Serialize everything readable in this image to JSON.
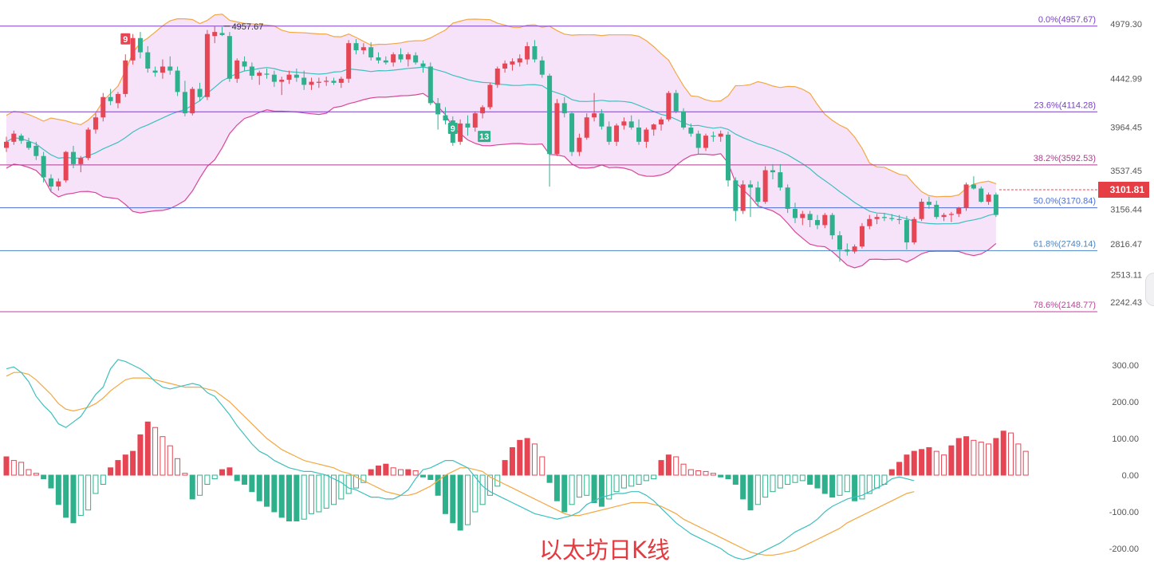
{
  "caption": "以太坊日K线",
  "chart_data": [
    {
      "type": "candlestick",
      "title": "",
      "price_axis": {
        "ticks": [
          4979.3,
          4442.99,
          3964.45,
          3537.45,
          3156.44,
          2816.47,
          2513.11,
          2242.43
        ],
        "tick_labels": [
          "4979.30",
          "4442.99",
          "3964.45",
          "3537.45",
          "3156.44",
          "2816.47",
          "2513.11",
          "2242.43"
        ]
      },
      "fibonacci_levels": [
        {
          "label": "0.0%(4957.67)",
          "value": 4957.67,
          "color": "#7b3fc9"
        },
        {
          "label": "23.6%(4114.28)",
          "value": 4114.28,
          "color": "#7b3fc9"
        },
        {
          "label": "38.2%(3592.53)",
          "value": 3592.53,
          "color": "#b03a8f"
        },
        {
          "label": "50.0%(3170.84)",
          "value": 3170.84,
          "color": "#4a6fd8"
        },
        {
          "label": "61.8%(2749.14)",
          "value": 2749.14,
          "color": "#4a86c8"
        },
        {
          "label": "78.6%(2148.77)",
          "value": 2148.77,
          "color": "#c0409a"
        }
      ],
      "high_marker": "4957.67",
      "last_price": "3101.81",
      "td_markers": [
        "9",
        "9",
        "13"
      ],
      "candles": [
        [
          3760,
          3870,
          3720,
          3820
        ],
        [
          3820,
          3930,
          3790,
          3900
        ],
        [
          3880,
          3900,
          3800,
          3830
        ],
        [
          3820,
          3860,
          3740,
          3760
        ],
        [
          3780,
          3820,
          3640,
          3680
        ],
        [
          3680,
          3720,
          3420,
          3470
        ],
        [
          3460,
          3500,
          3330,
          3380
        ],
        [
          3380,
          3460,
          3340,
          3430
        ],
        [
          3440,
          3730,
          3420,
          3720
        ],
        [
          3720,
          3780,
          3560,
          3600
        ],
        [
          3600,
          3680,
          3520,
          3660
        ],
        [
          3660,
          3960,
          3640,
          3940
        ],
        [
          3940,
          4100,
          3900,
          4060
        ],
        [
          4060,
          4300,
          4020,
          4260
        ],
        [
          4260,
          4340,
          4180,
          4220
        ],
        [
          4200,
          4310,
          4150,
          4290
        ],
        [
          4290,
          4680,
          4260,
          4620
        ],
        [
          4620,
          4880,
          4580,
          4840
        ],
        [
          4840,
          4900,
          4640,
          4700
        ],
        [
          4700,
          4760,
          4500,
          4540
        ],
        [
          4520,
          4560,
          4460,
          4500
        ],
        [
          4500,
          4630,
          4440,
          4560
        ],
        [
          4560,
          4660,
          4480,
          4520
        ],
        [
          4520,
          4560,
          4270,
          4310
        ],
        [
          4310,
          4420,
          4070,
          4100
        ],
        [
          4100,
          4360,
          4080,
          4340
        ],
        [
          4340,
          4400,
          4220,
          4260
        ],
        [
          4260,
          4920,
          4230,
          4880
        ],
        [
          4860,
          4960,
          4790,
          4900
        ],
        [
          4890,
          4950,
          4860,
          4870
        ],
        [
          4860,
          4900,
          4410,
          4440
        ],
        [
          4440,
          4640,
          4400,
          4620
        ],
        [
          4610,
          4660,
          4520,
          4560
        ],
        [
          4560,
          4600,
          4430,
          4470
        ],
        [
          4470,
          4520,
          4380,
          4500
        ],
        [
          4490,
          4540,
          4440,
          4480
        ],
        [
          4480,
          4520,
          4360,
          4410
        ],
        [
          4410,
          4460,
          4280,
          4430
        ],
        [
          4430,
          4520,
          4390,
          4480
        ],
        [
          4480,
          4540,
          4410,
          4450
        ],
        [
          4450,
          4520,
          4330,
          4380
        ],
        [
          4380,
          4450,
          4330,
          4410
        ],
        [
          4400,
          4450,
          4350,
          4410
        ],
        [
          4410,
          4460,
          4370,
          4420
        ],
        [
          4420,
          4450,
          4380,
          4400
        ],
        [
          4400,
          4460,
          4350,
          4440
        ],
        [
          4440,
          4820,
          4400,
          4790
        ],
        [
          4790,
          4830,
          4680,
          4720
        ],
        [
          4720,
          4790,
          4680,
          4750
        ],
        [
          4750,
          4800,
          4620,
          4650
        ],
        [
          4650,
          4700,
          4590,
          4620
        ],
        [
          4620,
          4660,
          4580,
          4600
        ],
        [
          4600,
          4700,
          4560,
          4680
        ],
        [
          4680,
          4740,
          4600,
          4630
        ],
        [
          4630,
          4700,
          4560,
          4680
        ],
        [
          4670,
          4700,
          4580,
          4600
        ],
        [
          4590,
          4620,
          4500,
          4560
        ],
        [
          4560,
          4600,
          4180,
          4200
        ],
        [
          4200,
          4250,
          3940,
          4090
        ],
        [
          4080,
          4160,
          3990,
          4030
        ],
        [
          4030,
          4070,
          3780,
          3810
        ],
        [
          3820,
          4040,
          3790,
          4000
        ],
        [
          4000,
          4080,
          3880,
          3960
        ],
        [
          3960,
          4120,
          3920,
          4100
        ],
        [
          4100,
          4180,
          4050,
          4160
        ],
        [
          4160,
          4400,
          4140,
          4380
        ],
        [
          4380,
          4560,
          4350,
          4540
        ],
        [
          4540,
          4620,
          4500,
          4590
        ],
        [
          4580,
          4640,
          4520,
          4610
        ],
        [
          4600,
          4680,
          4560,
          4640
        ],
        [
          4630,
          4800,
          4580,
          4760
        ],
        [
          4760,
          4820,
          4600,
          4630
        ],
        [
          4620,
          4660,
          4450,
          4480
        ],
        [
          4470,
          4490,
          3380,
          3700
        ],
        [
          3700,
          4240,
          3680,
          4200
        ],
        [
          4200,
          4260,
          4060,
          4100
        ],
        [
          4100,
          4120,
          3680,
          3720
        ],
        [
          3720,
          3900,
          3680,
          3860
        ],
        [
          3860,
          4100,
          3840,
          4060
        ],
        [
          4060,
          4300,
          4020,
          4100
        ],
        [
          4100,
          4140,
          3940,
          3970
        ],
        [
          3970,
          4020,
          3790,
          3820
        ],
        [
          3820,
          4000,
          3780,
          3980
        ],
        [
          3980,
          4060,
          3940,
          4020
        ],
        [
          4020,
          4080,
          3940,
          3960
        ],
        [
          3960,
          4040,
          3790,
          3820
        ],
        [
          3820,
          3960,
          3760,
          3940
        ],
        [
          3940,
          4000,
          3880,
          3990
        ],
        [
          3990,
          4060,
          3930,
          4040
        ],
        [
          4040,
          4320,
          4020,
          4300
        ],
        [
          4300,
          4330,
          4100,
          4120
        ],
        [
          4120,
          4150,
          3940,
          3960
        ],
        [
          3960,
          4000,
          3870,
          3900
        ],
        [
          3900,
          3930,
          3700,
          3760
        ],
        [
          3760,
          3900,
          3730,
          3880
        ],
        [
          3880,
          3920,
          3820,
          3870
        ],
        [
          3870,
          3930,
          3820,
          3900
        ],
        [
          3890,
          3920,
          3380,
          3440
        ],
        [
          3440,
          3470,
          3040,
          3140
        ],
        [
          3140,
          3440,
          3110,
          3400
        ],
        [
          3400,
          3440,
          3080,
          3370
        ],
        [
          3370,
          3430,
          3180,
          3230
        ],
        [
          3230,
          3580,
          3210,
          3540
        ],
        [
          3540,
          3600,
          3450,
          3520
        ],
        [
          3520,
          3600,
          3340,
          3370
        ],
        [
          3370,
          3400,
          3120,
          3160
        ],
        [
          3160,
          3220,
          3020,
          3070
        ],
        [
          3070,
          3140,
          3000,
          3110
        ],
        [
          3110,
          3140,
          2980,
          3050
        ],
        [
          3050,
          3100,
          2960,
          3000
        ],
        [
          3000,
          3120,
          2970,
          3100
        ],
        [
          3100,
          3120,
          2860,
          2900
        ],
        [
          2900,
          2940,
          2640,
          2760
        ],
        [
          2760,
          2820,
          2700,
          2740
        ],
        [
          2740,
          2810,
          2720,
          2790
        ],
        [
          2790,
          3020,
          2770,
          2990
        ],
        [
          2990,
          3100,
          2960,
          3060
        ],
        [
          3060,
          3110,
          3010,
          3080
        ],
        [
          3080,
          3120,
          3040,
          3070
        ],
        [
          3070,
          3110,
          3040,
          3060
        ],
        [
          3060,
          3100,
          3010,
          3050
        ],
        [
          3050,
          3090,
          2760,
          2830
        ],
        [
          2830,
          3080,
          2810,
          3060
        ],
        [
          3060,
          3260,
          3040,
          3230
        ],
        [
          3230,
          3280,
          3160,
          3200
        ],
        [
          3200,
          3240,
          3060,
          3080
        ],
        [
          3080,
          3120,
          3040,
          3100
        ],
        [
          3100,
          3130,
          3030,
          3110
        ],
        [
          3110,
          3180,
          3080,
          3170
        ],
        [
          3170,
          3420,
          3140,
          3400
        ],
        [
          3400,
          3480,
          3350,
          3360
        ],
        [
          3360,
          3380,
          3220,
          3230
        ],
        [
          3230,
          3320,
          3200,
          3300
        ],
        [
          3300,
          3320,
          3080,
          3100
        ]
      ]
    },
    {
      "type": "macd",
      "title": "",
      "value_axis": {
        "ticks": [
          300,
          200,
          100,
          0,
          -100,
          -200
        ],
        "tick_labels": [
          "300.00",
          "200.00",
          "100.00",
          "0.00",
          "-100.00",
          "-200.00"
        ]
      },
      "histogram": [
        50,
        40,
        35,
        15,
        5,
        -10,
        -35,
        -80,
        -115,
        -130,
        -110,
        -95,
        -50,
        -25,
        20,
        40,
        55,
        65,
        110,
        145,
        130,
        105,
        80,
        45,
        5,
        -65,
        -55,
        -25,
        -10,
        15,
        20,
        -15,
        -25,
        -45,
        -70,
        -85,
        -100,
        -115,
        -125,
        -125,
        -120,
        -105,
        -100,
        -90,
        -80,
        -65,
        -50,
        -35,
        -20,
        15,
        25,
        30,
        20,
        15,
        15,
        12,
        -5,
        -12,
        -55,
        -105,
        -130,
        -150,
        -135,
        -100,
        -80,
        -55,
        -30,
        40,
        75,
        95,
        100,
        85,
        50,
        -20,
        -70,
        -100,
        -80,
        -60,
        -55,
        -75,
        -85,
        -65,
        -45,
        -35,
        -30,
        -25,
        -15,
        -10,
        40,
        55,
        50,
        30,
        15,
        12,
        10,
        5,
        -5,
        -10,
        -25,
        -65,
        -95,
        -80,
        -60,
        -45,
        -35,
        -25,
        -20,
        -15,
        -25,
        -35,
        -50,
        -60,
        -55,
        -45,
        -70,
        -65,
        -50,
        -35,
        -25,
        15,
        35,
        55,
        65,
        70,
        75,
        65,
        55,
        80,
        100,
        105,
        95,
        90,
        85,
        100,
        120,
        115,
        85,
        65
      ],
      "dif": [
        290,
        295,
        280,
        255,
        215,
        190,
        170,
        140,
        130,
        145,
        160,
        190,
        220,
        240,
        290,
        315,
        310,
        300,
        290,
        275,
        255,
        240,
        235,
        240,
        245,
        250,
        245,
        225,
        215,
        190,
        165,
        135,
        110,
        85,
        65,
        55,
        40,
        30,
        20,
        15,
        10,
        10,
        5,
        0,
        -10,
        -20,
        -35,
        -40,
        -50,
        -60,
        -60,
        -65,
        -65,
        -55,
        -40,
        -10,
        15,
        20,
        30,
        40,
        40,
        30,
        20,
        -5,
        -30,
        -45,
        -55,
        -65,
        -75,
        -85,
        -95,
        -105,
        -110,
        -115,
        -120,
        -115,
        -110,
        -100,
        -80,
        -70,
        -60,
        -55,
        -50,
        -50,
        -45,
        -45,
        -55,
        -70,
        -90,
        -110,
        -130,
        -145,
        -160,
        -170,
        -180,
        -190,
        -200,
        -215,
        -225,
        -230,
        -225,
        -215,
        -205,
        -195,
        -185,
        -170,
        -155,
        -145,
        -135,
        -120,
        -100,
        -85,
        -75,
        -65,
        -60,
        -55,
        -45,
        -35,
        -25,
        -10,
        -5,
        -10,
        -15
      ],
      "dea": [
        270,
        280,
        280,
        275,
        260,
        240,
        220,
        195,
        180,
        175,
        180,
        185,
        195,
        210,
        230,
        245,
        260,
        265,
        265,
        265,
        260,
        255,
        250,
        245,
        240,
        240,
        240,
        235,
        230,
        215,
        200,
        180,
        160,
        140,
        120,
        100,
        85,
        70,
        60,
        50,
        40,
        35,
        30,
        25,
        20,
        10,
        5,
        -5,
        -15,
        -25,
        -35,
        -45,
        -50,
        -55,
        -55,
        -50,
        -40,
        -30,
        -15,
        0,
        10,
        20,
        20,
        15,
        10,
        -5,
        -15,
        -25,
        -35,
        -45,
        -55,
        -65,
        -75,
        -85,
        -95,
        -105,
        -110,
        -110,
        -105,
        -100,
        -95,
        -90,
        -85,
        -80,
        -75,
        -75,
        -75,
        -80,
        -85,
        -95,
        -105,
        -120,
        -130,
        -140,
        -150,
        -160,
        -170,
        -180,
        -190,
        -200,
        -210,
        -215,
        -218,
        -218,
        -215,
        -210,
        -205,
        -195,
        -185,
        -175,
        -165,
        -155,
        -145,
        -130,
        -120,
        -110,
        -100,
        -90,
        -80,
        -70,
        -60,
        -50,
        -45
      ]
    }
  ]
}
